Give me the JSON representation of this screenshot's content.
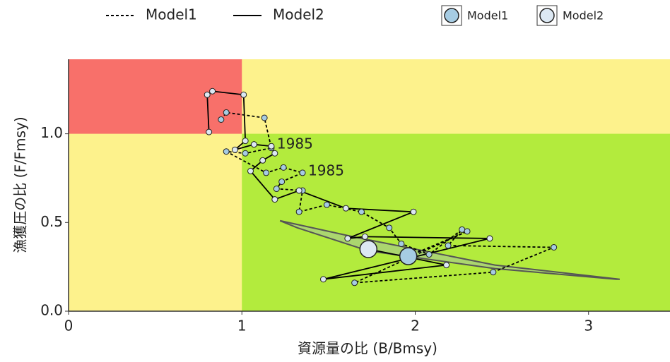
{
  "chart_data": {
    "type": "kobe",
    "x_label": "資源量の比 (B/Bmsy)",
    "y_label": "漁獲圧の比 (F/Fmsy)",
    "xlim": [
      0,
      3.47
    ],
    "ylim": [
      0,
      1.42
    ],
    "xticks": [
      0,
      1,
      2,
      3
    ],
    "yticks": [
      {
        "value": 0,
        "label": "0.0"
      },
      0.5,
      {
        "value": 1,
        "label": "1.0"
      }
    ],
    "thresholds": {
      "x": 1,
      "y": 1
    },
    "zone_colors": {
      "red": "#f8706a",
      "yellow": "#fdf28c",
      "green": "#b3eb3d"
    },
    "series": [
      {
        "name": "Model1",
        "color": "#a6cce3",
        "line_style": "dashed",
        "x": [
          0.88,
          0.91,
          1.13,
          1.17,
          1.02,
          0.91,
          1.14,
          1.24,
          1.35,
          1.23,
          1.2,
          1.35,
          1.33,
          1.49,
          1.69,
          1.85,
          1.92,
          2.08,
          2.27,
          2.19,
          2.8,
          2.45,
          1.65,
          2.3,
          1.96
        ],
        "y": [
          1.08,
          1.12,
          1.09,
          0.92,
          0.89,
          0.9,
          0.78,
          0.81,
          0.78,
          0.73,
          0.69,
          0.68,
          0.56,
          0.6,
          0.56,
          0.47,
          0.38,
          0.32,
          0.46,
          0.37,
          0.36,
          0.22,
          0.16,
          0.45,
          0.31
        ]
      },
      {
        "name": "Model2",
        "color": "#dce8f3",
        "line_style": "solid",
        "x": [
          0.81,
          0.8,
          0.83,
          1.01,
          1.02,
          0.96,
          1.07,
          1.17,
          1.19,
          1.12,
          1.05,
          1.19,
          1.33,
          1.6,
          1.99,
          1.61,
          1.71,
          2.43,
          1.47,
          2.18,
          1.73
        ],
        "y": [
          1.01,
          1.22,
          1.24,
          1.22,
          0.96,
          0.91,
          0.94,
          0.93,
          0.89,
          0.85,
          0.79,
          0.63,
          0.68,
          0.58,
          0.56,
          0.41,
          0.42,
          0.41,
          0.18,
          0.26,
          0.35
        ]
      }
    ],
    "region": {
      "color": "#a8cf80",
      "x": [
        1.22,
        1.64,
        2.46,
        3.18,
        3.16,
        2.46,
        1.73,
        1.32
      ],
      "y": [
        0.51,
        0.42,
        0.26,
        0.18,
        0.18,
        0.24,
        0.34,
        0.47
      ]
    },
    "annotations": [
      {
        "text": "1985",
        "x": 1.17,
        "y": 0.93
      },
      {
        "text": "1985",
        "x": 1.35,
        "y": 0.78
      }
    ]
  }
}
